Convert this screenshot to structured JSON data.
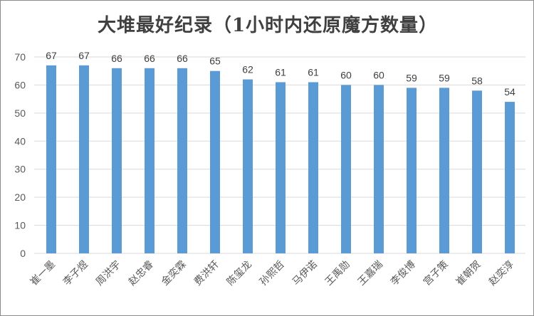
{
  "chart_data": {
    "type": "bar",
    "title": "大堆最好纪录（1小时内还原魔方数量）",
    "categories": [
      "崔一墨",
      "李子煜",
      "周洪宇",
      "赵忠睿",
      "金奕霖",
      "费洪轩",
      "陈玺龙",
      "孙熙哲",
      "马伊诺",
      "王禹勋",
      "王嘉瑞",
      "李俊博",
      "宫子策",
      "崔朝贺",
      "赵奕淳"
    ],
    "values": [
      67,
      67,
      66,
      66,
      66,
      65,
      62,
      61,
      61,
      60,
      60,
      59,
      59,
      58,
      54
    ],
    "ylim": [
      0,
      70
    ],
    "yticks": [
      0,
      10,
      20,
      30,
      40,
      50,
      60,
      70
    ],
    "grid": true,
    "bar_color": "#5b9bd5",
    "grid_color": "#d9d9d9"
  }
}
